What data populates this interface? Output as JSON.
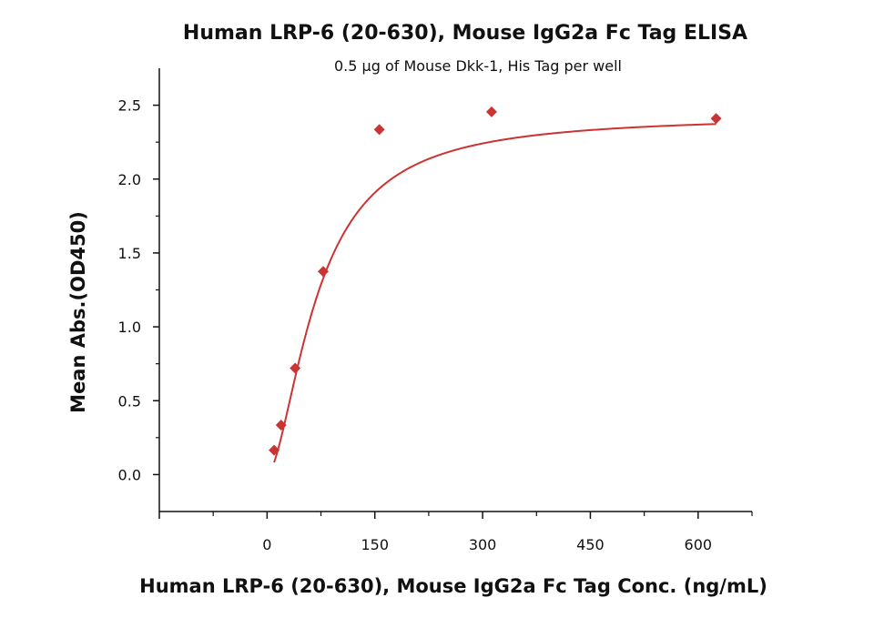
{
  "chart_data": {
    "type": "scatter",
    "title": "Human LRP-6 (20-630), Mouse IgG2a Fc Tag ELISA",
    "subtitle": "0.5 μg of Mouse Dkk-1, His Tag per well",
    "xlabel": "Human LRP-6 (20-630), Mouse IgG2a Fc Tag Conc. (ng/mL)",
    "ylabel": "Mean Abs.(OD450)",
    "xlim": [
      -150,
      675
    ],
    "ylim": [
      -0.25,
      2.75
    ],
    "x_ticks": [
      0,
      150,
      300,
      450,
      600
    ],
    "y_ticks": [
      0.0,
      0.5,
      1.0,
      1.5,
      2.0,
      2.5
    ],
    "x_tick_labels": [
      "0",
      "150",
      "300",
      "450",
      "600"
    ],
    "y_tick_labels": [
      "0.0",
      "0.5",
      "1.0",
      "1.5",
      "2.0",
      "2.5"
    ],
    "grid": false,
    "series": [
      {
        "marker": "diamond",
        "color": "#cc3333",
        "x": [
          9.77,
          19.53,
          39.06,
          78.13,
          156.25,
          312.5,
          625
        ],
        "y": [
          0.165,
          0.335,
          0.72,
          1.375,
          2.335,
          2.455,
          2.41
        ]
      }
    ],
    "fit_curve": {
      "type": "4PL",
      "color": "#cc3333",
      "bottom": 0.0,
      "top": 2.43,
      "ec50": 70,
      "hill": 1.7
    }
  }
}
